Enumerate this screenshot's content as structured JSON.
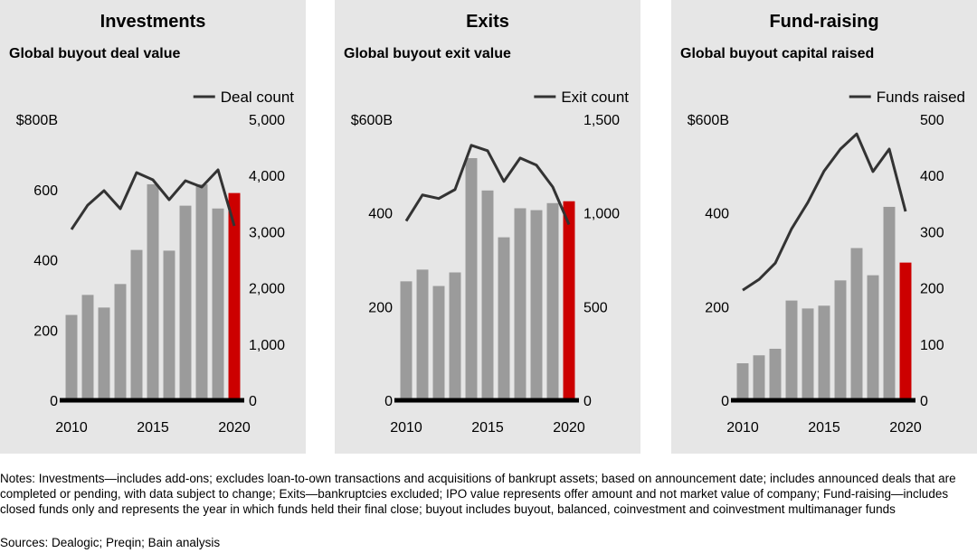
{
  "chart_data": [
    {
      "type": "bar",
      "title": "Investments",
      "subtitle": "Global buyout deal value",
      "x": [
        2010,
        2011,
        2012,
        2013,
        2014,
        2015,
        2016,
        2017,
        2018,
        2019,
        2020
      ],
      "xlim": [
        2009.5,
        2020.5
      ],
      "xticks": [
        2010,
        2015,
        2020
      ],
      "ylim": [
        0,
        800
      ],
      "yticks": [
        0,
        200,
        400,
        600,
        {
          "value": 800,
          "label": "$800B"
        }
      ],
      "y2lim": [
        0,
        5000
      ],
      "y2ticks": [
        0,
        {
          "value": 1000,
          "label": "1,000"
        },
        {
          "value": 2000,
          "label": "2,000"
        },
        {
          "value": 3000,
          "label": "3,000"
        },
        {
          "value": 4000,
          "label": "4,000"
        },
        {
          "value": 5000,
          "label": "5,000"
        }
      ],
      "grid": false,
      "legend": "top-right",
      "series": [
        {
          "type": "bar",
          "values": [
            243,
            300,
            264,
            331,
            428,
            615,
            426,
            554,
            615,
            546,
            590
          ],
          "colors": [
            "#9b9b9b",
            "#9b9b9b",
            "#9b9b9b",
            "#9b9b9b",
            "#9b9b9b",
            "#9b9b9b",
            "#9b9b9b",
            "#9b9b9b",
            "#9b9b9b",
            "#9b9b9b",
            "#cc0000"
          ]
        },
        {
          "type": "line",
          "name": "Deal count",
          "color": "#333333",
          "axis": "y2",
          "values": [
            3039,
            3473,
            3730,
            3408,
            4051,
            3923,
            3569,
            3907,
            3794,
            4100,
            3103
          ]
        }
      ]
    },
    {
      "type": "bar",
      "title": "Exits",
      "subtitle": "Global buyout exit value",
      "x": [
        2010,
        2011,
        2012,
        2013,
        2014,
        2015,
        2016,
        2017,
        2018,
        2019,
        2020
      ],
      "xlim": [
        2009.5,
        2020.5
      ],
      "xticks": [
        2010,
        2015,
        2020
      ],
      "ylim": [
        0,
        600
      ],
      "yticks": [
        0,
        200,
        400,
        {
          "value": 600,
          "label": "$600B"
        }
      ],
      "y2lim": [
        0,
        1500
      ],
      "y2ticks": [
        0,
        500,
        {
          "value": 1000,
          "label": "1,000"
        },
        {
          "value": 1500,
          "label": "1,500"
        }
      ],
      "grid": false,
      "legend": "top-right",
      "series": [
        {
          "type": "bar",
          "values": [
            254,
            279,
            244,
            273,
            517,
            448,
            348,
            410,
            406,
            421,
            425
          ],
          "colors": [
            "#9b9b9b",
            "#9b9b9b",
            "#9b9b9b",
            "#9b9b9b",
            "#9b9b9b",
            "#9b9b9b",
            "#9b9b9b",
            "#9b9b9b",
            "#9b9b9b",
            "#9b9b9b",
            "#cc0000"
          ]
        },
        {
          "type": "line",
          "name": "Exit count",
          "color": "#333333",
          "axis": "y2",
          "values": [
            957,
            1096,
            1077,
            1125,
            1361,
            1332,
            1168,
            1293,
            1255,
            1139,
            938
          ]
        }
      ]
    },
    {
      "type": "bar",
      "title": "Fund-raising",
      "subtitle": "Global buyout capital raised",
      "x": [
        2010,
        2011,
        2012,
        2013,
        2014,
        2015,
        2016,
        2017,
        2018,
        2019,
        2020
      ],
      "xlim": [
        2009.5,
        2020.5
      ],
      "xticks": [
        2010,
        2015,
        2020
      ],
      "ylim": [
        0,
        600
      ],
      "yticks": [
        0,
        200,
        400,
        {
          "value": 600,
          "label": "$600B"
        }
      ],
      "y2lim": [
        0,
        500
      ],
      "y2ticks": [
        0,
        100,
        200,
        300,
        400,
        500
      ],
      "grid": false,
      "legend": "top-right",
      "series": [
        {
          "type": "bar",
          "values": [
            79,
            96,
            110,
            213,
            196,
            202,
            256,
            325,
            267,
            413,
            294
          ],
          "colors": [
            "#9b9b9b",
            "#9b9b9b",
            "#9b9b9b",
            "#9b9b9b",
            "#9b9b9b",
            "#9b9b9b",
            "#9b9b9b",
            "#9b9b9b",
            "#9b9b9b",
            "#9b9b9b",
            "#cc0000"
          ]
        },
        {
          "type": "line",
          "name": "Funds raised",
          "color": "#333333",
          "axis": "y2",
          "values": [
            196,
            215,
            244,
            305,
            352,
            408,
            447,
            474,
            407,
            447,
            336
          ]
        }
      ]
    }
  ],
  "notes": "Notes: Investments—includes add-ons; excludes loan-to-own transactions and acquisitions of bankrupt assets; based on announcement date; includes announced deals that are completed or pending, with data subject to change; Exits—bankruptcies excluded; IPO value represents offer amount and not market value of company; Fund-raising—includes closed funds only and represents the year in which funds held their final close; buyout includes buyout, balanced, coinvestment and coinvestment multimanager funds",
  "sources": "Sources: Dealogic; Preqin; Bain analysis"
}
